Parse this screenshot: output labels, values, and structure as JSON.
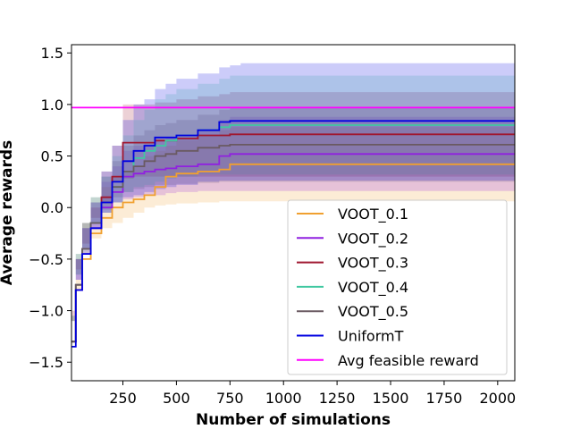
{
  "chart_data": {
    "type": "line",
    "xlabel": "Number of simulations",
    "ylabel": "Average rewards",
    "xlim": [
      10,
      2080
    ],
    "ylim": [
      -1.68,
      1.58
    ],
    "xticks": [
      250,
      500,
      750,
      1000,
      1250,
      1500,
      1750,
      2000
    ],
    "yticks": [
      -1.5,
      -1.0,
      -0.5,
      0.0,
      0.5,
      1.0,
      1.5
    ],
    "xtick_labels": [
      "250",
      "500",
      "750",
      "1000",
      "1250",
      "1500",
      "1750",
      "2000"
    ],
    "ytick_labels": [
      "−1.5",
      "−1.0",
      "−0.5",
      "0.0",
      "0.5",
      "1.0",
      "1.5"
    ],
    "legend_position": "lower-right",
    "series": [
      {
        "name": "VOOT_0.1",
        "color": "#f0a030",
        "x": [
          10,
          30,
          60,
          100,
          150,
          200,
          250,
          300,
          350,
          400,
          450,
          500,
          600,
          700,
          750,
          800,
          900,
          1000,
          1500,
          2080
        ],
        "y": [
          -1.3,
          -0.8,
          -0.5,
          -0.25,
          -0.1,
          0.0,
          0.05,
          0.08,
          0.12,
          0.2,
          0.3,
          0.33,
          0.35,
          0.37,
          0.42,
          0.42,
          0.42,
          0.42,
          0.42,
          0.42
        ],
        "lower": [
          -1.5,
          -1.1,
          -0.8,
          -0.45,
          -0.3,
          -0.2,
          -0.15,
          -0.1,
          -0.05,
          0.0,
          0.02,
          0.03,
          0.04,
          0.05,
          0.06,
          0.06,
          0.06,
          0.06,
          0.06,
          0.06
        ],
        "upper": [
          -1.1,
          -0.5,
          -0.2,
          0.0,
          0.2,
          0.3,
          0.35,
          0.4,
          0.5,
          0.55,
          0.6,
          0.65,
          0.7,
          0.75,
          0.78,
          0.78,
          0.78,
          0.78,
          0.78,
          0.78
        ]
      },
      {
        "name": "VOOT_0.2",
        "color": "#9020e0",
        "x": [
          10,
          30,
          60,
          100,
          150,
          200,
          250,
          300,
          350,
          400,
          450,
          500,
          600,
          700,
          750,
          800,
          900,
          1000,
          1500,
          2080
        ],
        "y": [
          -1.3,
          -0.8,
          -0.45,
          -0.2,
          0.0,
          0.15,
          0.3,
          0.33,
          0.35,
          0.37,
          0.38,
          0.4,
          0.42,
          0.5,
          0.52,
          0.52,
          0.52,
          0.52,
          0.52,
          0.52
        ],
        "lower": [
          -1.5,
          -1.1,
          -0.7,
          -0.4,
          -0.2,
          -0.05,
          0.05,
          0.08,
          0.1,
          0.12,
          0.12,
          0.14,
          0.15,
          0.16,
          0.16,
          0.16,
          0.16,
          0.16,
          0.16,
          0.16
        ],
        "upper": [
          -1.1,
          -0.5,
          -0.2,
          0.0,
          0.25,
          0.4,
          0.55,
          0.6,
          0.62,
          0.65,
          0.68,
          0.7,
          0.75,
          0.85,
          0.88,
          0.88,
          0.88,
          0.88,
          0.88,
          0.88
        ]
      },
      {
        "name": "VOOT_0.3",
        "color": "#a01830",
        "x": [
          10,
          30,
          60,
          100,
          150,
          200,
          250,
          300,
          350,
          400,
          450,
          500,
          600,
          700,
          750,
          800,
          900,
          1000,
          1500,
          2080
        ],
        "y": [
          -1.3,
          -0.75,
          -0.4,
          -0.15,
          0.1,
          0.3,
          0.63,
          0.63,
          0.63,
          0.65,
          0.65,
          0.67,
          0.7,
          0.7,
          0.71,
          0.71,
          0.71,
          0.71,
          0.71,
          0.71
        ],
        "lower": [
          -1.5,
          -1.0,
          -0.6,
          -0.35,
          -0.1,
          0.05,
          0.25,
          0.28,
          0.3,
          0.3,
          0.3,
          0.3,
          0.3,
          0.3,
          0.3,
          0.3,
          0.3,
          0.3,
          0.3,
          0.3
        ],
        "upper": [
          -1.1,
          -0.5,
          -0.15,
          0.05,
          0.35,
          0.6,
          1.0,
          1.0,
          1.0,
          1.02,
          1.02,
          1.05,
          1.08,
          1.1,
          1.12,
          1.12,
          1.12,
          1.12,
          1.12,
          1.12
        ]
      },
      {
        "name": "VOOT_0.4",
        "color": "#40c8a0",
        "x": [
          10,
          30,
          60,
          100,
          150,
          200,
          250,
          300,
          350,
          400,
          450,
          500,
          600,
          700,
          750,
          800,
          900,
          1000,
          1500,
          2080
        ],
        "y": [
          -1.3,
          -0.75,
          -0.4,
          -0.15,
          0.05,
          0.2,
          0.35,
          0.48,
          0.55,
          0.6,
          0.65,
          0.7,
          0.75,
          0.78,
          0.8,
          0.8,
          0.8,
          0.8,
          0.8,
          0.8
        ],
        "lower": [
          -1.5,
          -1.05,
          -0.65,
          -0.4,
          -0.15,
          -0.05,
          0.05,
          0.15,
          0.2,
          0.22,
          0.25,
          0.28,
          0.3,
          0.32,
          0.32,
          0.32,
          0.32,
          0.32,
          0.32,
          0.32
        ],
        "upper": [
          -1.1,
          -0.45,
          -0.15,
          0.1,
          0.3,
          0.5,
          0.7,
          0.85,
          0.95,
          1.05,
          1.1,
          1.15,
          1.2,
          1.25,
          1.28,
          1.28,
          1.28,
          1.28,
          1.28,
          1.28
        ]
      },
      {
        "name": "VOOT_0.5",
        "color": "#6a5a62",
        "x": [
          10,
          30,
          60,
          100,
          150,
          200,
          250,
          300,
          350,
          400,
          450,
          500,
          600,
          700,
          750,
          800,
          900,
          1000,
          1500,
          2080
        ],
        "y": [
          -1.3,
          -0.75,
          -0.4,
          -0.15,
          0.05,
          0.2,
          0.35,
          0.4,
          0.45,
          0.5,
          0.52,
          0.55,
          0.58,
          0.6,
          0.61,
          0.61,
          0.61,
          0.61,
          0.61,
          0.61
        ],
        "lower": [
          -1.5,
          -1.05,
          -0.65,
          -0.4,
          -0.15,
          -0.02,
          0.1,
          0.15,
          0.18,
          0.2,
          0.22,
          0.22,
          0.23,
          0.24,
          0.25,
          0.25,
          0.25,
          0.25,
          0.25,
          0.25
        ],
        "upper": [
          -1.1,
          -0.45,
          -0.15,
          0.1,
          0.3,
          0.45,
          0.6,
          0.7,
          0.75,
          0.8,
          0.82,
          0.85,
          0.9,
          0.95,
          0.97,
          0.97,
          0.97,
          0.97,
          0.97,
          0.97
        ]
      },
      {
        "name": "UniformT",
        "color": "#0000e0",
        "x": [
          10,
          30,
          60,
          100,
          150,
          200,
          250,
          300,
          350,
          400,
          450,
          500,
          600,
          700,
          750,
          800,
          900,
          1000,
          1500,
          2080
        ],
        "y": [
          -1.35,
          -0.8,
          -0.45,
          -0.2,
          0.05,
          0.25,
          0.45,
          0.55,
          0.6,
          0.68,
          0.68,
          0.7,
          0.75,
          0.83,
          0.84,
          0.84,
          0.84,
          0.84,
          0.84,
          0.84
        ],
        "lower": [
          -1.5,
          -1.1,
          -0.7,
          -0.45,
          -0.2,
          -0.05,
          0.05,
          0.1,
          0.12,
          0.15,
          0.18,
          0.2,
          0.22,
          0.25,
          0.26,
          0.26,
          0.26,
          0.26,
          0.26,
          0.26
        ],
        "upper": [
          -1.1,
          -0.5,
          -0.2,
          0.05,
          0.35,
          0.6,
          0.85,
          1.0,
          1.05,
          1.15,
          1.2,
          1.25,
          1.3,
          1.36,
          1.38,
          1.4,
          1.4,
          1.4,
          1.4,
          1.4
        ]
      },
      {
        "name": "Avg feasible reward",
        "color": "#ff00ff",
        "x": [
          10,
          2080
        ],
        "y": [
          0.97,
          0.97
        ]
      }
    ]
  }
}
